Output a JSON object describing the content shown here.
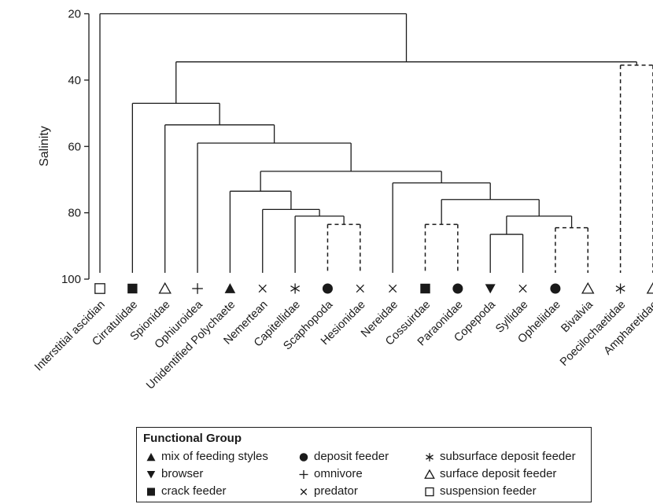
{
  "axis": {
    "ylabel": "Salinity",
    "ticks": [
      20,
      40,
      60,
      80,
      100
    ],
    "range": [
      20,
      100
    ]
  },
  "taxa": [
    {
      "name": "Interstitial ascidian",
      "group": "suspension"
    },
    {
      "name": "Cirratulidae",
      "group": "crack"
    },
    {
      "name": "Spionidae",
      "group": "surface"
    },
    {
      "name": "Ophiuroidea",
      "group": "omnivore"
    },
    {
      "name": "Unidentified Polychaete",
      "group": "mix"
    },
    {
      "name": "Nemertean",
      "group": "predator"
    },
    {
      "name": "Capitellidae",
      "group": "subsurface"
    },
    {
      "name": "Scaphopoda",
      "group": "deposit"
    },
    {
      "name": "Hesionidae",
      "group": "predator"
    },
    {
      "name": "Nereidae",
      "group": "predator"
    },
    {
      "name": "Cossuirdae",
      "group": "crack"
    },
    {
      "name": "Paraonidae",
      "group": "deposit"
    },
    {
      "name": "Copepoda",
      "group": "browser"
    },
    {
      "name": "Syllidae",
      "group": "predator"
    },
    {
      "name": "Opheliidae",
      "group": "deposit"
    },
    {
      "name": "Bivalvia",
      "group": "surface"
    },
    {
      "name": "Poecilochaetidae",
      "group": "subsurface"
    },
    {
      "name": "Ampharetidae",
      "group": "surface"
    }
  ],
  "tree": {
    "children": [
      {
        "leaf": 0
      },
      {
        "salinity": 34.5,
        "children": [
          {
            "salinity": 47,
            "children": [
              {
                "leaf": 1
              },
              {
                "salinity": 53.5,
                "children": [
                  {
                    "leaf": 2
                  },
                  {
                    "salinity": 59,
                    "children": [
                      {
                        "leaf": 3
                      },
                      {
                        "salinity": 67.5,
                        "children": [
                          {
                            "salinity": 73.5,
                            "children": [
                              {
                                "leaf": 4
                              },
                              {
                                "salinity": 79,
                                "children": [
                                  {
                                    "leaf": 5
                                  },
                                  {
                                    "salinity": 81,
                                    "children": [
                                      {
                                        "leaf": 6
                                      },
                                      {
                                        "salinity": 83.5,
                                        "dashed": true,
                                        "children": [
                                          {
                                            "leaf": 7
                                          },
                                          {
                                            "leaf": 8
                                          }
                                        ]
                                      }
                                    ]
                                  }
                                ]
                              }
                            ]
                          },
                          {
                            "salinity": 71,
                            "children": [
                              {
                                "leaf": 9
                              },
                              {
                                "salinity": 76,
                                "children": [
                                  {
                                    "salinity": 83.5,
                                    "dashed": true,
                                    "children": [
                                      {
                                        "leaf": 10
                                      },
                                      {
                                        "leaf": 11
                                      }
                                    ]
                                  },
                                  {
                                    "salinity": 81,
                                    "children": [
                                      {
                                        "salinity": 86.5,
                                        "children": [
                                          {
                                            "leaf": 12
                                          },
                                          {
                                            "leaf": 13
                                          }
                                        ]
                                      },
                                      {
                                        "salinity": 84.5,
                                        "dashed": true,
                                        "children": [
                                          {
                                            "leaf": 14
                                          },
                                          {
                                            "leaf": 15
                                          }
                                        ]
                                      }
                                    ]
                                  }
                                ]
                              }
                            ]
                          }
                        ]
                      }
                    ]
                  }
                ]
              }
            ]
          },
          {
            "salinity": 35.5,
            "dashed": true,
            "children": [
              {
                "leaf": 16
              },
              {
                "leaf": 17
              }
            ]
          }
        ]
      }
    ],
    "salinity": 20
  },
  "legend": {
    "title": "Functional Group",
    "items": [
      {
        "key": "mix",
        "label": "mix of feeding styles"
      },
      {
        "key": "browser",
        "label": "browser"
      },
      {
        "key": "crack",
        "label": "crack feeder"
      },
      {
        "key": "deposit",
        "label": "deposit feeder"
      },
      {
        "key": "omnivore",
        "label": "omnivore"
      },
      {
        "key": "predator",
        "label": "predator"
      },
      {
        "key": "subsurface",
        "label": "subsurface deposit feeder"
      },
      {
        "key": "surface",
        "label": "surface deposit feeder"
      },
      {
        "key": "suspension",
        "label": "suspension feeder"
      }
    ]
  }
}
